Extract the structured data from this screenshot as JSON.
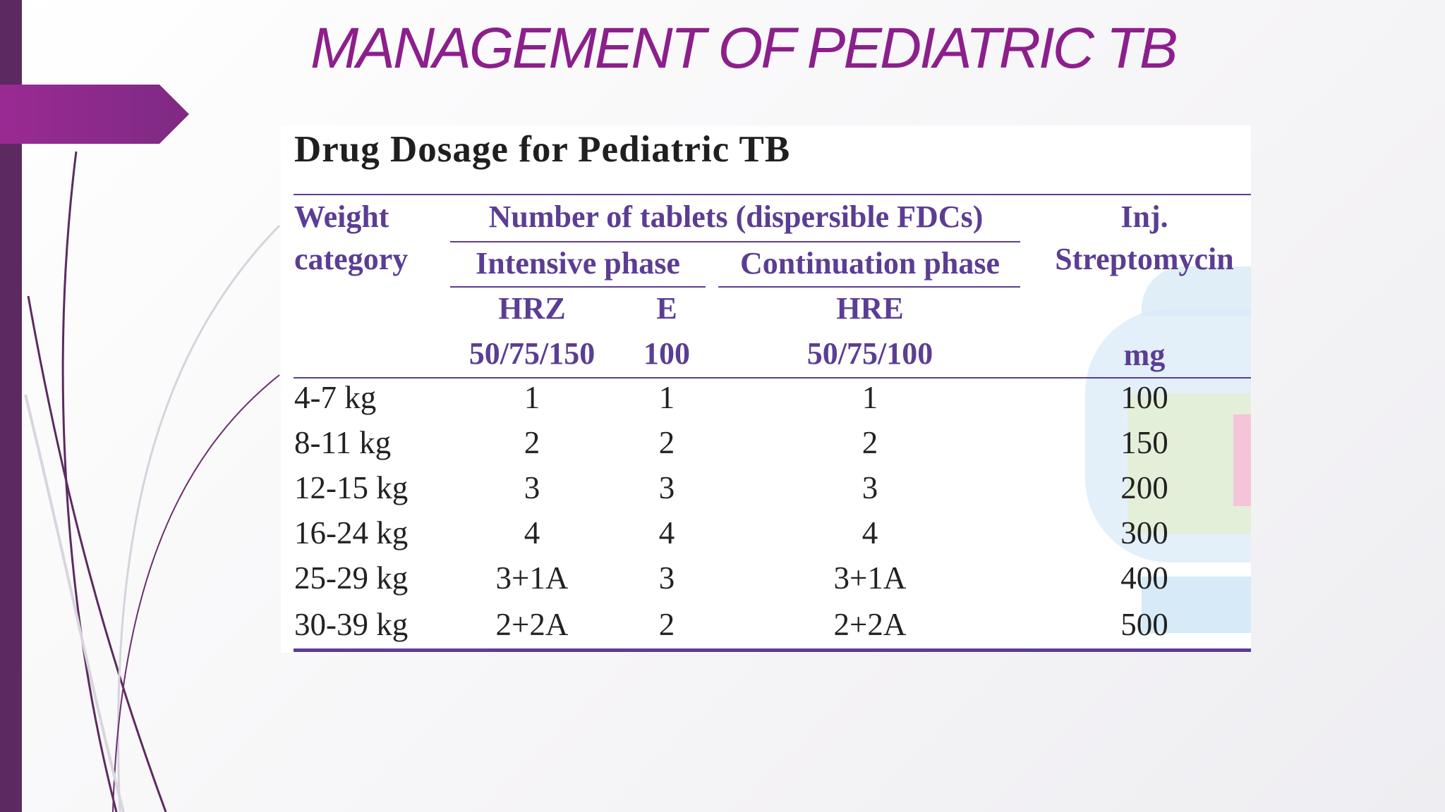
{
  "slide": {
    "title": "MANAGEMENT OF PEDIATRIC TB",
    "accent_color": "#8c1f8c",
    "sidebar_color": "#5c2a60"
  },
  "table": {
    "caption": "Drug Dosage for Pediatric TB",
    "header": {
      "weight_line1": "Weight",
      "weight_line2": "category",
      "group_label": "Number of tablets (dispersible FDCs)",
      "intensive_phase": "Intensive phase",
      "continuation_phase": "Continuation phase",
      "injection_line1": "Inj.",
      "injection_line2": "Streptomycin",
      "hrz": "HRZ",
      "hrz_strength": "50/75/150",
      "e": "E",
      "e_strength": "100",
      "hre": "HRE",
      "hre_strength": "50/75/100",
      "injection_unit": "mg"
    },
    "rows": [
      {
        "weight": "4-7 kg",
        "hrz": "1",
        "e": "1",
        "hre": "1",
        "streptomycin": "100"
      },
      {
        "weight": "8-11 kg",
        "hrz": "2",
        "e": "2",
        "hre": "2",
        "streptomycin": "150"
      },
      {
        "weight": "12-15 kg",
        "hrz": "3",
        "e": "3",
        "hre": "3",
        "streptomycin": "200"
      },
      {
        "weight": "16-24 kg",
        "hrz": "4",
        "e": "4",
        "hre": "4",
        "streptomycin": "300"
      },
      {
        "weight": "25-29 kg",
        "hrz": "3+1A",
        "e": "3",
        "hre": "3+1A",
        "streptomycin": "400"
      },
      {
        "weight": "30-39 kg",
        "hrz": "2+2A",
        "e": "2",
        "hre": "2+2A",
        "streptomycin": "500"
      }
    ],
    "header_color": "#5b3e93",
    "body_text_color": "#222222"
  }
}
